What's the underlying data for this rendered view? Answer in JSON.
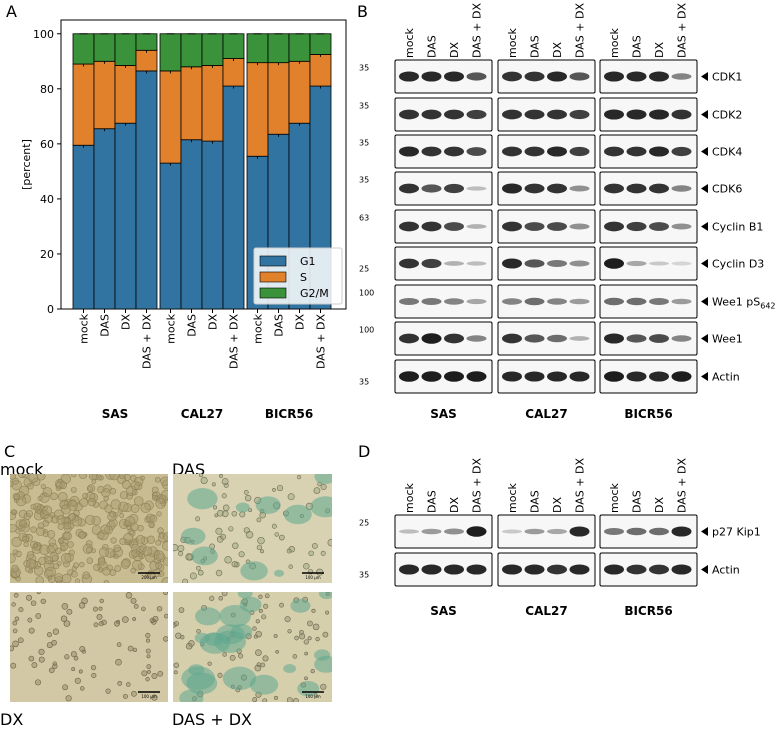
{
  "panels": {
    "A": "A",
    "B": "B",
    "C": "C",
    "D": "D"
  },
  "colors": {
    "G1": "#3274a1",
    "S": "#e1812c",
    "G2M": "#3a923a"
  },
  "chart_data": {
    "type": "bar",
    "stacked": true,
    "ylabel": "[percent]",
    "ylim": [
      0,
      105
    ],
    "yticks": [
      0,
      20,
      40,
      60,
      80,
      100
    ],
    "groups": [
      "SAS",
      "CAL27",
      "BICR56"
    ],
    "categories": [
      "mock",
      "DAS",
      "DX",
      "DAS + DX"
    ],
    "series": [
      {
        "name": "G1",
        "values": [
          [
            59.5,
            65.5,
            67.5,
            86.5
          ],
          [
            53,
            61.5,
            61,
            81
          ],
          [
            55.5,
            63.5,
            67.5,
            81
          ]
        ]
      },
      {
        "name": "S",
        "values": [
          [
            29.5,
            24.5,
            21,
            7.5
          ],
          [
            33.5,
            26.5,
            27.5,
            10
          ],
          [
            34,
            26,
            22.5,
            11.5
          ]
        ]
      },
      {
        "name": "G2/M",
        "values": [
          [
            11,
            10,
            11.5,
            6
          ],
          [
            13.5,
            12,
            11.5,
            9
          ],
          [
            10.5,
            10.5,
            10,
            7.5
          ]
        ]
      }
    ],
    "legend_position": "lower-right"
  },
  "blots_B": {
    "lanes": [
      "mock",
      "DAS",
      "DX",
      "DAS + DX"
    ],
    "cell_lines": [
      "SAS",
      "CAL27",
      "BICR56"
    ],
    "rows": [
      {
        "label": "CDK1",
        "marker": "35",
        "intensity": [
          [
            0.9,
            0.9,
            0.9,
            0.7
          ],
          [
            0.85,
            0.85,
            0.9,
            0.7
          ],
          [
            0.9,
            0.9,
            0.9,
            0.5
          ]
        ]
      },
      {
        "label": "CDK2",
        "marker": "35",
        "intensity": [
          [
            0.85,
            0.85,
            0.85,
            0.8
          ],
          [
            0.85,
            0.85,
            0.85,
            0.8
          ],
          [
            0.9,
            0.9,
            0.9,
            0.85
          ]
        ]
      },
      {
        "label": "CDK4",
        "marker": "35",
        "intensity": [
          [
            0.9,
            0.85,
            0.85,
            0.75
          ],
          [
            0.85,
            0.85,
            0.9,
            0.8
          ],
          [
            0.85,
            0.85,
            0.9,
            0.8
          ]
        ]
      },
      {
        "label": "CDK6",
        "marker": "35",
        "intensity": [
          [
            0.85,
            0.7,
            0.8,
            0.25
          ],
          [
            0.9,
            0.85,
            0.85,
            0.45
          ],
          [
            0.85,
            0.85,
            0.85,
            0.5
          ]
        ]
      },
      {
        "label": "Cyclin B1",
        "marker": "63",
        "intensity": [
          [
            0.85,
            0.85,
            0.75,
            0.3
          ],
          [
            0.85,
            0.75,
            0.75,
            0.45
          ],
          [
            0.85,
            0.8,
            0.75,
            0.45
          ]
        ]
      },
      {
        "label": "Cyclin D3",
        "marker": "25",
        "intensity": [
          [
            0.85,
            0.8,
            0.3,
            0.25
          ],
          [
            0.9,
            0.7,
            0.55,
            0.45
          ],
          [
            0.95,
            0.35,
            0.2,
            0.15
          ]
        ]
      },
      {
        "label": "Wee1 pS",
        "sub": "642",
        "marker": "100",
        "intensity": [
          [
            0.55,
            0.55,
            0.5,
            0.35
          ],
          [
            0.5,
            0.6,
            0.5,
            0.4
          ],
          [
            0.6,
            0.6,
            0.55,
            0.4
          ]
        ]
      },
      {
        "label": "Wee1",
        "marker": "100",
        "intensity": [
          [
            0.85,
            0.95,
            0.85,
            0.5
          ],
          [
            0.85,
            0.7,
            0.6,
            0.3
          ],
          [
            0.9,
            0.7,
            0.75,
            0.5
          ]
        ]
      },
      {
        "label": "Actin",
        "marker": "35",
        "intensity": [
          [
            0.95,
            0.95,
            0.95,
            0.95
          ],
          [
            0.9,
            0.9,
            0.9,
            0.9
          ],
          [
            0.95,
            0.9,
            0.9,
            0.95
          ]
        ]
      }
    ]
  },
  "micrographs": [
    {
      "title": "mock",
      "scale": "200 µm"
    },
    {
      "title": "DAS",
      "scale": "100 µm"
    },
    {
      "title": "DX",
      "scale": "100 µm"
    },
    {
      "title": "DAS + DX",
      "scale": "100 µm"
    }
  ],
  "blots_D": {
    "lanes": [
      "mock",
      "DAS",
      "DX",
      "DAS + DX"
    ],
    "cell_lines": [
      "SAS",
      "CAL27",
      "BICR56"
    ],
    "rows": [
      {
        "label": "p27 Kip1",
        "marker": "25",
        "intensity": [
          [
            0.25,
            0.4,
            0.45,
            0.95
          ],
          [
            0.2,
            0.4,
            0.35,
            0.9
          ],
          [
            0.55,
            0.6,
            0.6,
            0.9
          ]
        ]
      },
      {
        "label": "Actin",
        "marker": "35",
        "intensity": [
          [
            0.9,
            0.9,
            0.9,
            0.9
          ],
          [
            0.9,
            0.9,
            0.85,
            0.9
          ],
          [
            0.9,
            0.85,
            0.85,
            0.9
          ]
        ]
      }
    ]
  }
}
